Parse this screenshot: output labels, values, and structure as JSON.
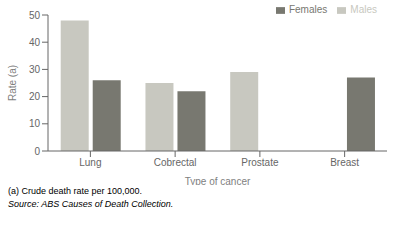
{
  "chart_data": {
    "type": "bar",
    "categories": [
      "Lung",
      "Cobrectal",
      "Prostate",
      "Breast"
    ],
    "series": [
      {
        "name": "Males",
        "color": "#c8c8c0",
        "values": [
          48,
          25,
          29,
          0
        ]
      },
      {
        "name": "Females",
        "color": "#787870",
        "values": [
          26,
          22,
          0,
          27
        ]
      }
    ],
    "ylim": [
      0,
      50
    ],
    "yticks": [
      0,
      10,
      20,
      30,
      40,
      50
    ],
    "ylabel": "Rate (a)",
    "xlabel": "Type of cancer",
    "legend": "upper right",
    "grid": false,
    "annotations": [
      "(a) Crude death rate per 100,000.",
      "Source: ABS Causes of Death Collection."
    ]
  }
}
